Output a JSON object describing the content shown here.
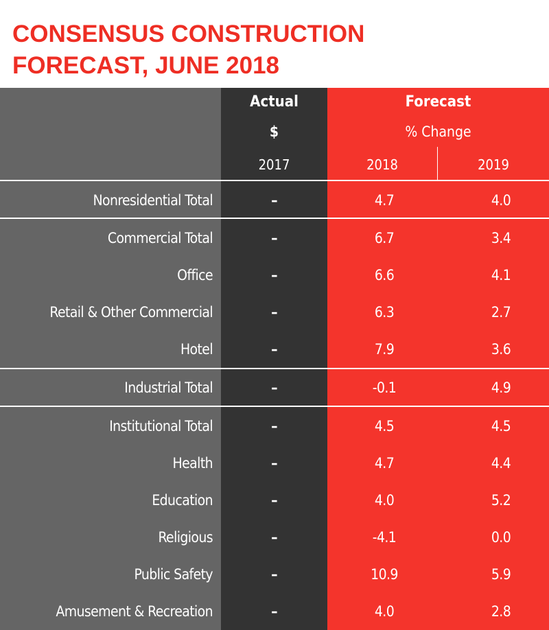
{
  "title": {
    "line1": "CONSENSUS CONSTRUCTION",
    "line2": "FORECAST, JUNE 2018"
  },
  "header": {
    "actual": "Actual",
    "dollar": "$",
    "actual_year": "2017",
    "forecast": "Forecast",
    "pct_change": "% Change",
    "forecast_year_1": "2018",
    "forecast_year_2": "2019"
  },
  "colors": {
    "title": "#ee2e24",
    "label_column": "#656565",
    "actual_column": "#333333",
    "forecast_column": "#f4342c"
  },
  "chart_data": {
    "type": "table",
    "title": "CONSENSUS CONSTRUCTION FORECAST, JUNE 2018",
    "columns": [
      "",
      "2017",
      "2018",
      "2019"
    ],
    "rows": [
      {
        "label": "Nonresidential Total",
        "actual": "–",
        "y2018": "4.7",
        "y2019": "4.0"
      },
      {
        "label": "Commercial Total",
        "actual": "–",
        "y2018": "6.7",
        "y2019": "3.4"
      },
      {
        "label": "Office",
        "actual": "–",
        "y2018": "6.6",
        "y2019": "4.1"
      },
      {
        "label": "Retail & Other Commercial",
        "actual": "–",
        "y2018": "6.3",
        "y2019": "2.7"
      },
      {
        "label": "Hotel",
        "actual": "–",
        "y2018": "7.9",
        "y2019": "3.6"
      },
      {
        "label": "Industrial Total",
        "actual": "–",
        "y2018": "-0.1",
        "y2019": "4.9"
      },
      {
        "label": "Institutional Total",
        "actual": "–",
        "y2018": "4.5",
        "y2019": "4.5"
      },
      {
        "label": "Health",
        "actual": "–",
        "y2018": "4.7",
        "y2019": "4.4"
      },
      {
        "label": "Education",
        "actual": "–",
        "y2018": "4.0",
        "y2019": "5.2"
      },
      {
        "label": "Religious",
        "actual": "–",
        "y2018": "-4.1",
        "y2019": "0.0"
      },
      {
        "label": "Public Safety",
        "actual": "–",
        "y2018": "10.9",
        "y2019": "5.9"
      },
      {
        "label": "Amusement & Recreation",
        "actual": "–",
        "y2018": "4.0",
        "y2019": "2.8"
      }
    ]
  }
}
